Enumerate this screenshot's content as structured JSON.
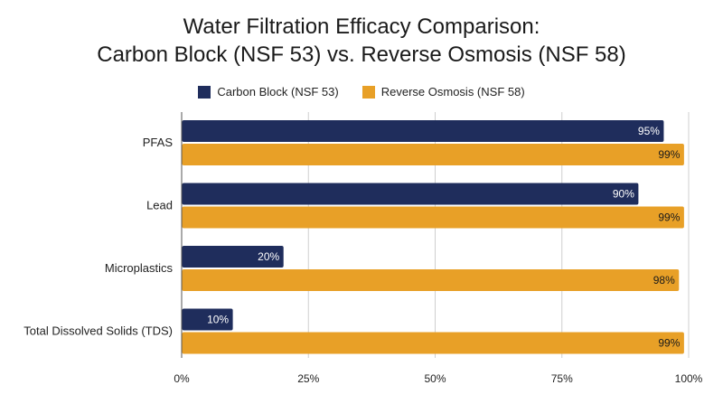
{
  "chart_data": {
    "type": "bar",
    "orientation": "horizontal",
    "title_lines": [
      "Water Filtration Efficacy Comparison:",
      "Carbon Block (NSF 53) vs. Reverse Osmosis (NSF 58)"
    ],
    "categories": [
      "PFAS",
      "Lead",
      "Microplastics",
      "Total Dissolved Solids (TDS)"
    ],
    "series": [
      {
        "name": "Carbon Block (NSF 53)",
        "color": "#1f2d5c",
        "label_color": "#ffffff",
        "values": [
          95,
          90,
          20,
          10
        ]
      },
      {
        "name": "Reverse Osmosis (NSF 58)",
        "color": "#e8a027",
        "label_color": "#1a1a1a",
        "values": [
          99,
          99,
          98,
          99
        ]
      }
    ],
    "xlim": [
      0,
      100
    ],
    "x_ticks": [
      0,
      25,
      50,
      75,
      100
    ],
    "x_tick_suffix": "%",
    "value_suffix": "%",
    "grid": true,
    "legend_position": "top"
  }
}
